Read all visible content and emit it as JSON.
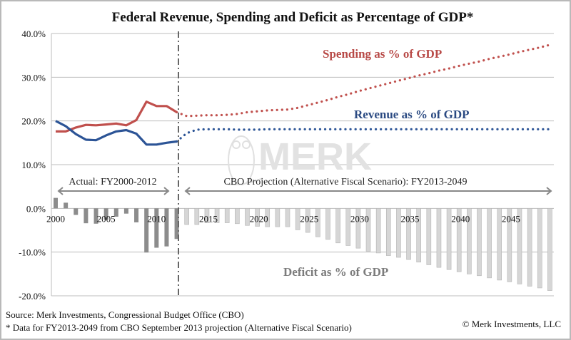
{
  "chart_data": {
    "type": "line",
    "title": "Federal Revenue, Spending and Deficit as Percentage of GDP*",
    "xlabel": "",
    "ylabel": "",
    "ylim": [
      -20,
      40
    ],
    "y_ticks": [
      "40.0%",
      "30.0%",
      "20.0%",
      "10.0%",
      "0.0%",
      "-10.0%",
      "-20.0%"
    ],
    "y_tick_values": [
      40,
      30,
      20,
      10,
      0,
      -10,
      -20
    ],
    "x_ticks": [
      "2000",
      "2005",
      "2010",
      "2015",
      "2020",
      "2025",
      "2030",
      "2035",
      "2040",
      "2045"
    ],
    "x_tick_values": [
      2000,
      2005,
      2010,
      2015,
      2020,
      2025,
      2030,
      2035,
      2040,
      2045
    ],
    "grid": true,
    "actual_years": [
      2000,
      2012
    ],
    "projection_years": [
      2013,
      2049
    ],
    "years": [
      2000,
      2001,
      2002,
      2003,
      2004,
      2005,
      2006,
      2007,
      2008,
      2009,
      2010,
      2011,
      2012,
      2013,
      2014,
      2015,
      2016,
      2017,
      2018,
      2019,
      2020,
      2021,
      2022,
      2023,
      2024,
      2025,
      2026,
      2027,
      2028,
      2029,
      2030,
      2031,
      2032,
      2033,
      2034,
      2035,
      2036,
      2037,
      2038,
      2039,
      2040,
      2041,
      2042,
      2043,
      2044,
      2045,
      2046,
      2047,
      2048,
      2049
    ],
    "series": [
      {
        "name": "Spending as % of GDP",
        "type": "line",
        "color": "#c0504d",
        "values": [
          17.6,
          17.6,
          18.5,
          19.1,
          19.0,
          19.2,
          19.4,
          19.0,
          20.2,
          24.4,
          23.4,
          23.4,
          22.0,
          21.1,
          21.2,
          21.3,
          21.3,
          21.4,
          21.6,
          22.0,
          22.2,
          22.4,
          22.5,
          22.6,
          23.0,
          23.6,
          24.2,
          24.8,
          25.5,
          26.1,
          26.8,
          27.4,
          28.0,
          28.6,
          29.2,
          29.8,
          30.4,
          30.9,
          31.5,
          32.0,
          32.6,
          33.1,
          33.6,
          34.2,
          34.7,
          35.2,
          35.8,
          36.3,
          36.8,
          37.4
        ]
      },
      {
        "name": "Revenue as % of GDP",
        "type": "line",
        "color": "#2c5496",
        "values": [
          20.0,
          18.8,
          17.0,
          15.7,
          15.6,
          16.7,
          17.6,
          17.9,
          17.1,
          14.6,
          14.6,
          15.0,
          15.3,
          17.2,
          18.0,
          18.1,
          18.1,
          18.1,
          18.0,
          18.0,
          18.0,
          18.1,
          18.1,
          18.1,
          18.1,
          18.1,
          18.1,
          18.1,
          18.1,
          18.1,
          18.1,
          18.1,
          18.1,
          18.1,
          18.1,
          18.1,
          18.1,
          18.1,
          18.1,
          18.1,
          18.1,
          18.1,
          18.1,
          18.1,
          18.1,
          18.1,
          18.1,
          18.1,
          18.1,
          18.1
        ]
      },
      {
        "name": "Deficit as % of GDP",
        "type": "bar",
        "color": "#8c8c8c",
        "values": [
          2.4,
          1.3,
          -1.5,
          -3.4,
          -3.5,
          -2.6,
          -1.9,
          -1.2,
          -3.2,
          -10.1,
          -9.0,
          -8.7,
          -7.0,
          -3.7,
          -3.7,
          -3.3,
          -3.3,
          -3.3,
          -3.5,
          -3.9,
          -4.1,
          -4.2,
          -4.2,
          -4.2,
          -4.9,
          -5.5,
          -6.5,
          -7.1,
          -7.9,
          -8.5,
          -9.1,
          -9.8,
          -10.2,
          -10.8,
          -11.2,
          -11.7,
          -12.3,
          -12.9,
          -13.5,
          -14.0,
          -14.5,
          -15.0,
          -15.4,
          -15.9,
          -16.4,
          -16.8,
          -17.3,
          -17.8,
          -18.2,
          -18.8
        ]
      }
    ],
    "annotations": {
      "spending_label": "Spending as % of GDP",
      "revenue_label": "Revenue as % of GDP",
      "deficit_label": "Deficit as % of GDP",
      "actual_range": "Actual: FY2000-2012",
      "projection_range": "CBO Projection (Alternative Fiscal Scenario): FY2013-2049",
      "watermark": "MERK"
    },
    "legend": "inline labels"
  },
  "footer": {
    "source": "Source: Merk Investments, Congressional Budget Office (CBO)",
    "note": "* Data for FY2013-2049 from CBO September 2013 projection (Alternative Fiscal Scenario)",
    "copyright": "© Merk Investments, LLC"
  }
}
